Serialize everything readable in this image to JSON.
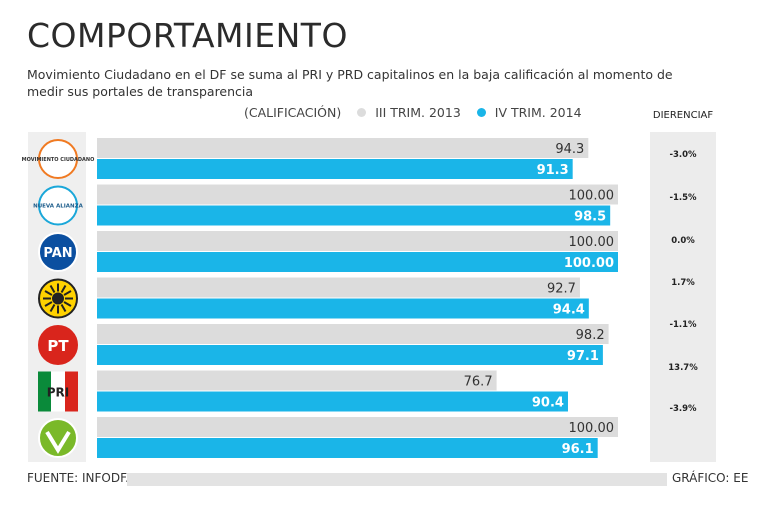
{
  "title": "COMPORTAMIENTO",
  "subtitle": "Movimiento Ciudadano en el DF se suma al PRI y PRD capitalinos en la baja calificación al momento de medir sus portales de transparencia",
  "colors": {
    "series2013": "#dcdcdc",
    "series2014": "#1ab5e8",
    "text": "#222222"
  },
  "legend": {
    "unit": "(CALIFICACIÓN)",
    "s1": "III TRIM. 2013",
    "s2": "IV TRIM. 2014"
  },
  "diff_header": "DIERENCIAF",
  "footer": {
    "source": "FUENTE: INFODF.",
    "credit": "GRÁFICO: EE"
  },
  "chart_data": {
    "type": "bar",
    "title": "COMPORTAMIENTO",
    "categories": [
      "Movimiento Ciudadano",
      "Nueva Alianza",
      "PAN",
      "PRD",
      "PT",
      "PRI",
      "PVEM"
    ],
    "logo_text": [
      "MOVIMIENTO CIUDADANO",
      "NUEVA ALIANZA",
      "PAN",
      "",
      "PT",
      "PRI",
      ""
    ],
    "series": [
      {
        "name": "III TRIM. 2013",
        "values": [
          94.3,
          100.0,
          100.0,
          92.7,
          98.2,
          76.7,
          100.0
        ],
        "labels": [
          "94.3",
          "100.00",
          "100.00",
          "92.7",
          "98.2",
          "76.7",
          "100.00"
        ]
      },
      {
        "name": "IV TRIM. 2014",
        "values": [
          91.3,
          98.5,
          100.0,
          94.4,
          97.1,
          90.4,
          96.1
        ],
        "labels": [
          "91.3",
          "98.5",
          "100.00",
          "94.4",
          "97.1",
          "90.4",
          "96.1"
        ]
      }
    ],
    "differences": [
      "-3.0%",
      "-1.5%",
      "0.0%",
      "1.7%",
      "-1.1%",
      "13.7%",
      "-3.9%"
    ],
    "ylabel": "CALIFICACIÓN",
    "xlim": [
      0,
      100
    ]
  }
}
